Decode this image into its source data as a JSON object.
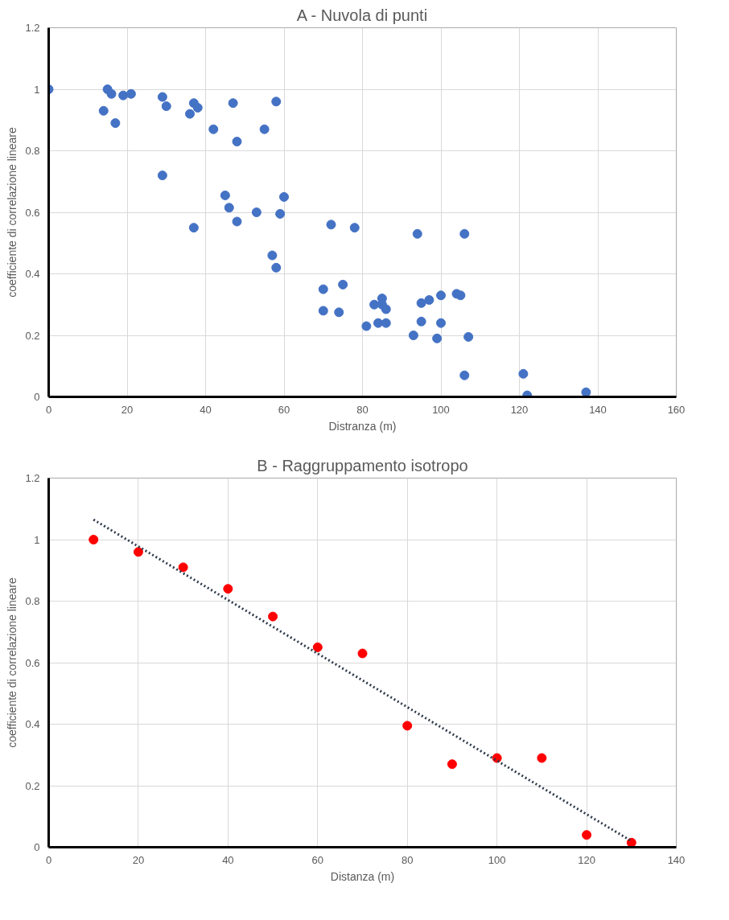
{
  "chart_data": [
    {
      "type": "scatter",
      "title": "A - Nuvola di punti",
      "xlabel": "Distranza (m)",
      "ylabel": "coefficiente di correlazione lineare",
      "xlim": [
        0,
        160
      ],
      "ylim": [
        0,
        1.2
      ],
      "xticks": [
        0,
        20,
        40,
        60,
        80,
        100,
        120,
        140,
        160
      ],
      "yticks": [
        0,
        0.2,
        0.4,
        0.6,
        0.8,
        1,
        1.2
      ],
      "grid": true,
      "marker": "circle",
      "series": [
        {
          "color": "#4472c4",
          "x": [
            0,
            15,
            16,
            14,
            17,
            19,
            21,
            29,
            30,
            29,
            36,
            37,
            38,
            37,
            42,
            47,
            48,
            45,
            46,
            48,
            53,
            55,
            58,
            57,
            58,
            59,
            60,
            70,
            70,
            72,
            74,
            75,
            78,
            81,
            83,
            84,
            85,
            85,
            86,
            86,
            93,
            94,
            95,
            95,
            97,
            99,
            100,
            100,
            104,
            105,
            106,
            106,
            107,
            121,
            122,
            137
          ],
          "values": [
            1.0,
            1.0,
            0.985,
            0.93,
            0.89,
            0.98,
            0.985,
            0.975,
            0.945,
            0.72,
            0.92,
            0.955,
            0.94,
            0.55,
            0.87,
            0.955,
            0.83,
            0.655,
            0.615,
            0.57,
            0.6,
            0.87,
            0.96,
            0.46,
            0.42,
            0.595,
            0.65,
            0.35,
            0.28,
            0.56,
            0.275,
            0.365,
            0.55,
            0.23,
            0.3,
            0.24,
            0.32,
            0.3,
            0.285,
            0.24,
            0.2,
            0.53,
            0.245,
            0.305,
            0.315,
            0.19,
            0.33,
            0.24,
            0.335,
            0.33,
            0.07,
            0.53,
            0.195,
            0.075,
            0.005,
            0.015
          ]
        }
      ]
    },
    {
      "type": "scatter",
      "title": "B - Raggruppamento isotropo",
      "xlabel": "Distanza (m)",
      "ylabel": "coefficiente di correlazione lineare",
      "xlim": [
        0,
        140
      ],
      "ylim": [
        0,
        1.2
      ],
      "xticks": [
        0,
        20,
        40,
        60,
        80,
        100,
        120,
        140
      ],
      "yticks": [
        0,
        0.2,
        0.4,
        0.6,
        0.8,
        1,
        1.2
      ],
      "grid": true,
      "marker": "circle",
      "series": [
        {
          "color": "#ff0000",
          "x": [
            10,
            20,
            30,
            40,
            50,
            60,
            70,
            80,
            90,
            100,
            110,
            120,
            130
          ],
          "values": [
            1.0,
            0.96,
            0.91,
            0.84,
            0.75,
            0.65,
            0.63,
            0.395,
            0.27,
            0.29,
            0.29,
            0.04,
            0.015
          ]
        },
        {
          "type": "line",
          "color": "#2f3b4c",
          "line_style": "dotted",
          "marker": "none",
          "x": [
            10,
            130
          ],
          "values": [
            1.065,
            0.02
          ]
        }
      ]
    }
  ]
}
